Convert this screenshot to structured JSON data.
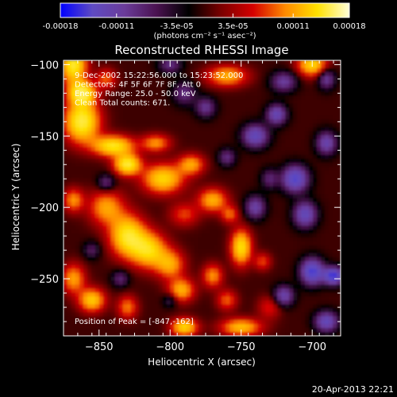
{
  "chart_data": {
    "type": "heatmap",
    "title": "Reconstructed RHESSI Image",
    "xlabel": "Heliocentric X (arcsec)",
    "ylabel": "Heliocentric Y (arcsec)",
    "xlim": [
      -875,
      -680
    ],
    "ylim": [
      -290,
      -97
    ],
    "x_ticks": [
      -850,
      -800,
      -750,
      -700
    ],
    "y_ticks": [
      -100,
      -150,
      -200,
      -250
    ],
    "colorbar": {
      "range": [
        -0.00018,
        0.00018
      ],
      "ticks": [
        {
          "value": -0.00018,
          "label": "-0.00018"
        },
        {
          "value": -0.00011,
          "label": "-0.00011"
        },
        {
          "value": -3.5e-05,
          "label": "-3.5e-05"
        },
        {
          "value": 3.5e-05,
          "label": "3.5e-05"
        },
        {
          "value": 0.00011,
          "label": "0.00011"
        },
        {
          "value": 0.00018,
          "label": "0.00018"
        }
      ],
      "units": "(photons cm⁻² s⁻¹ asec⁻²)",
      "colors": [
        "#0000ff",
        "#5f4bc2",
        "#6b3c9a",
        "#4a1250",
        "#000000",
        "#7a0000",
        "#d40000",
        "#ff8a00",
        "#ffe000",
        "#ffffd8"
      ]
    },
    "annotations": [
      "9-Dec-2002 15:22:56.000 to 15:23:52.000",
      "Detectors: 4F 5F 6F 7F 8F, Att 0",
      "Energy Range: 25.0 - 50.0 keV",
      "Clean    Total counts: 671."
    ],
    "peak_label": "Position of Peak = [-847,-162]",
    "peak": [
      -847,
      -162
    ],
    "timestamp": "20-Apr-2013 22:21",
    "blobs": [
      [
        -868,
        -100,
        9,
        13,
        0.9
      ],
      [
        -862,
        -140,
        12,
        14,
        0.95
      ],
      [
        -862,
        -120,
        9,
        8,
        0.9
      ],
      [
        -845,
        -110,
        7,
        7,
        0.4
      ],
      [
        -840,
        -157,
        14,
        7,
        0.85
      ],
      [
        -830,
        -170,
        9,
        7,
        0.9
      ],
      [
        -810,
        -155,
        10,
        6,
        0.5
      ],
      [
        -805,
        -180,
        14,
        10,
        0.75
      ],
      [
        -785,
        -170,
        9,
        7,
        0.55
      ],
      [
        -790,
        -205,
        10,
        8,
        0.35
      ],
      [
        -770,
        -195,
        10,
        8,
        0.6
      ],
      [
        -758,
        -205,
        6,
        6,
        0.4
      ],
      [
        -845,
        -200,
        12,
        12,
        0.55
      ],
      [
        -830,
        -220,
        12,
        14,
        0.85
      ],
      [
        -815,
        -230,
        12,
        12,
        0.75
      ],
      [
        -800,
        -240,
        10,
        10,
        0.55
      ],
      [
        -792,
        -258,
        9,
        8,
        0.6
      ],
      [
        -770,
        -248,
        7,
        8,
        0.5
      ],
      [
        -750,
        -228,
        7,
        12,
        0.8
      ],
      [
        -735,
        -238,
        6,
        6,
        0.35
      ],
      [
        -868,
        -195,
        7,
        8,
        0.5
      ],
      [
        -868,
        -250,
        8,
        10,
        0.55
      ],
      [
        -855,
        -265,
        9,
        8,
        0.7
      ],
      [
        -830,
        -270,
        7,
        8,
        0.45
      ],
      [
        -790,
        -284,
        9,
        6,
        0.75
      ],
      [
        -750,
        -284,
        14,
        6,
        0.65
      ],
      [
        -730,
        -270,
        8,
        8,
        0.3
      ],
      [
        -760,
        -265,
        7,
        7,
        0.4
      ],
      [
        -760,
        -108,
        14,
        7,
        0.6
      ],
      [
        -700,
        -100,
        10,
        8,
        0.75
      ],
      [
        -790,
        -120,
        8,
        8,
        -0.4
      ],
      [
        -845,
        -183,
        6,
        6,
        -0.4
      ],
      [
        -740,
        -150,
        9,
        8,
        -0.7
      ],
      [
        -725,
        -135,
        7,
        7,
        -0.65
      ],
      [
        -712,
        -180,
        9,
        9,
        -0.85
      ],
      [
        -705,
        -205,
        8,
        9,
        -0.7
      ],
      [
        -700,
        -245,
        8,
        9,
        -0.9
      ],
      [
        -685,
        -248,
        7,
        6,
        -0.95
      ],
      [
        -690,
        -155,
        7,
        8,
        -0.6
      ],
      [
        -720,
        -262,
        7,
        7,
        -0.6
      ],
      [
        -775,
        -130,
        7,
        7,
        -0.45
      ],
      [
        -760,
        -165,
        6,
        6,
        -0.4
      ],
      [
        -740,
        -200,
        7,
        8,
        -0.55
      ],
      [
        -835,
        -250,
        6,
        6,
        -0.35
      ],
      [
        -855,
        -230,
        6,
        6,
        -0.3
      ],
      [
        -800,
        -100,
        8,
        6,
        -0.4
      ],
      [
        -720,
        -112,
        9,
        7,
        -0.5
      ],
      [
        -690,
        -280,
        8,
        7,
        -0.7
      ],
      [
        -800,
        -265,
        5,
        5,
        -0.3
      ],
      [
        -730,
        -180,
        6,
        7,
        -0.35
      ],
      [
        -690,
        -110,
        6,
        7,
        -0.5
      ]
    ]
  }
}
